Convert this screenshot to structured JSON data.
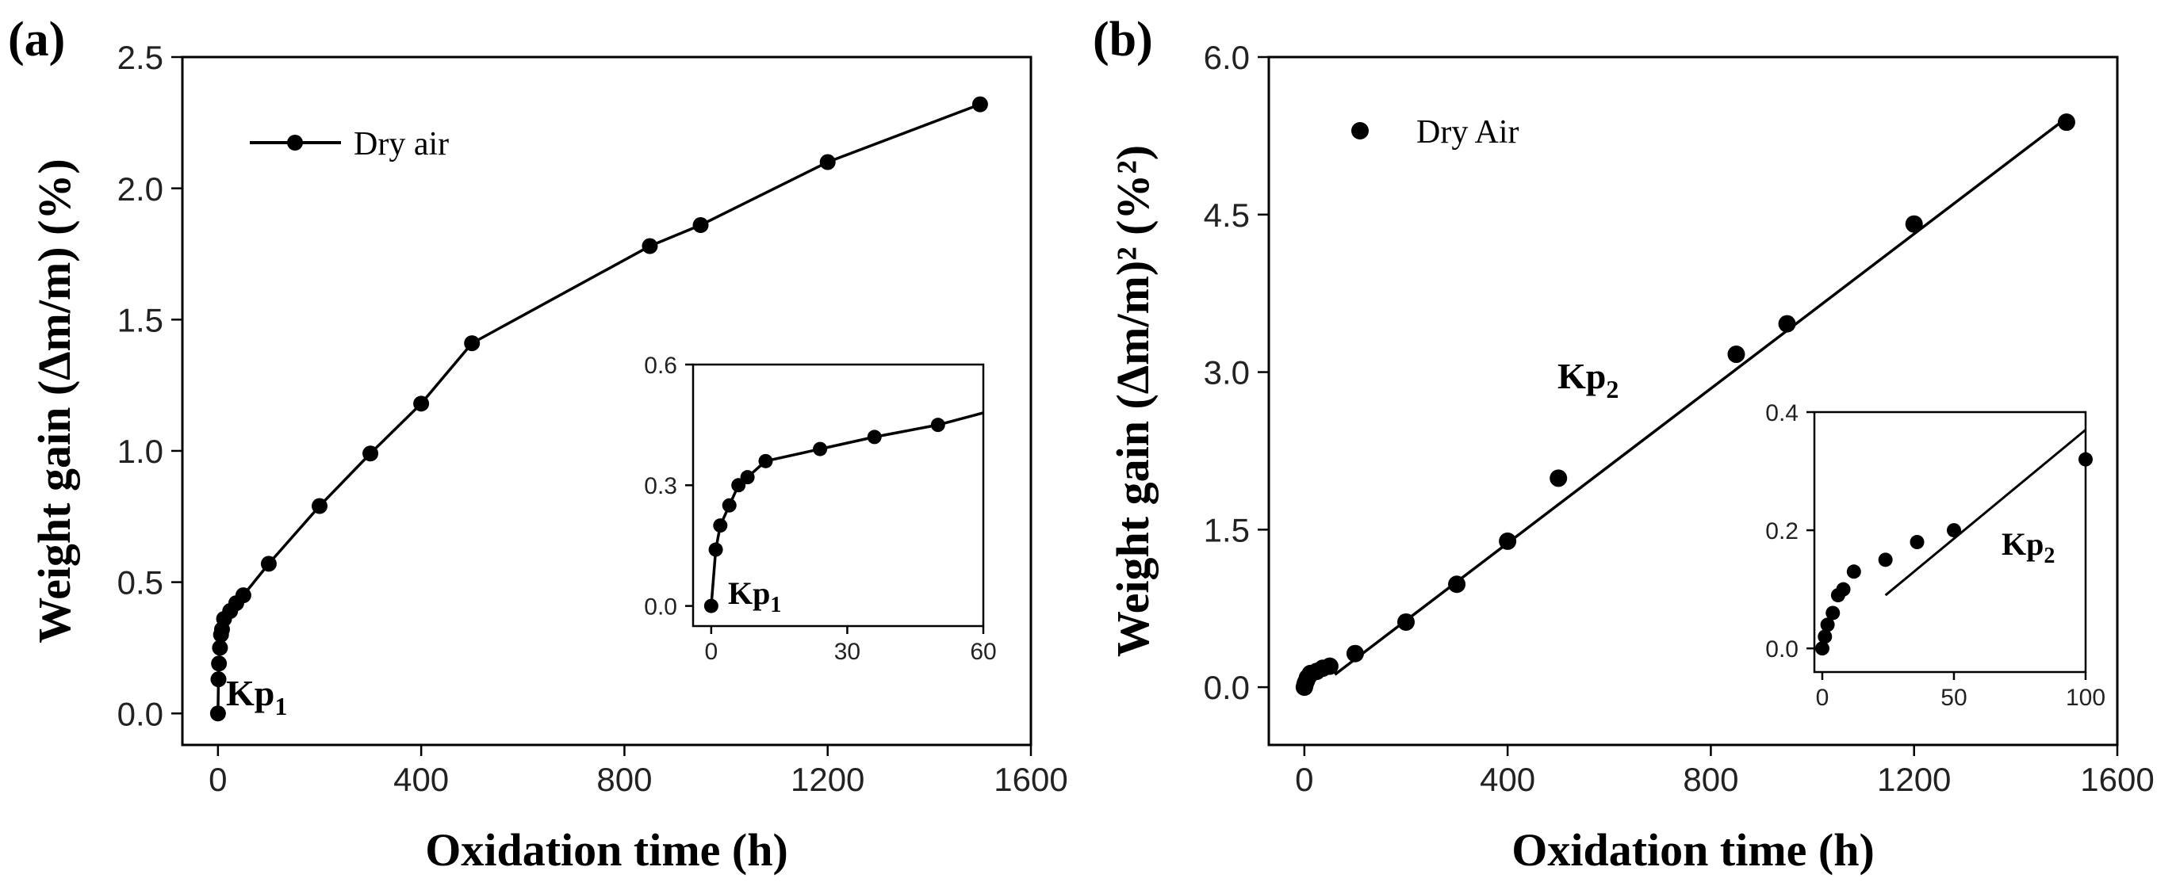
{
  "chart_data": [
    {
      "panel": "(a)",
      "type": "line",
      "xlabel": "Oxidation time (h)",
      "ylabel": "Weight gain (Δm/m) (%)",
      "xlim": [
        -70,
        1600
      ],
      "ylim": [
        -0.12,
        2.5
      ],
      "xticks": [
        0,
        400,
        800,
        1200,
        1600
      ],
      "yticks": [
        0.0,
        0.5,
        1.0,
        1.5,
        2.0,
        2.5
      ],
      "xtick_labels": [
        "0",
        "400",
        "800",
        "1200",
        "1600"
      ],
      "ytick_labels": [
        "0.0",
        "0.5",
        "1.0",
        "1.5",
        "2.0",
        "2.5"
      ],
      "legend": {
        "position": "top-left",
        "entries": [
          "Dry air"
        ]
      },
      "annotation": {
        "text": "Kp",
        "sub": "1"
      },
      "series": [
        {
          "name": "Dry air",
          "style": "line-marker",
          "x": [
            0,
            1,
            2,
            4,
            6,
            8,
            12,
            24,
            36,
            50,
            100,
            200,
            300,
            400,
            500,
            850,
            950,
            1200,
            1500
          ],
          "y": [
            0.0,
            0.13,
            0.19,
            0.25,
            0.3,
            0.32,
            0.36,
            0.39,
            0.42,
            0.45,
            0.57,
            0.79,
            0.99,
            1.18,
            1.41,
            1.78,
            1.86,
            2.1,
            2.32
          ]
        }
      ],
      "inset": {
        "xlim": [
          -4,
          60
        ],
        "ylim": [
          -0.05,
          0.6
        ],
        "xticks": [
          0,
          30,
          60
        ],
        "yticks": [
          0.0,
          0.3,
          0.6
        ],
        "xtick_labels": [
          "0",
          "30",
          "60"
        ],
        "ytick_labels": [
          "0.0",
          "0.3",
          "0.6"
        ],
        "annotation": {
          "text": "Kp",
          "sub": "1"
        },
        "x": [
          0,
          1,
          2,
          4,
          6,
          8,
          12,
          24,
          36,
          50,
          60
        ],
        "y": [
          0.0,
          0.14,
          0.2,
          0.25,
          0.3,
          0.32,
          0.36,
          0.39,
          0.42,
          0.45,
          0.48
        ],
        "markers_count": 10
      }
    },
    {
      "panel": "(b)",
      "type": "scatter",
      "xlabel": "Oxidation time (h)",
      "ylabel": "Weight gain (Δm/m)² (%²)",
      "xlim": [
        -70,
        1600
      ],
      "ylim": [
        -0.55,
        6.0
      ],
      "xticks": [
        0,
        400,
        800,
        1200,
        1600
      ],
      "yticks": [
        0.0,
        1.5,
        3.0,
        4.5,
        6.0
      ],
      "xtick_labels": [
        "0",
        "400",
        "800",
        "1200",
        "1600"
      ],
      "ytick_labels": [
        "0.0",
        "1.5",
        "3.0",
        "4.5",
        "6.0"
      ],
      "legend": {
        "position": "top-left",
        "entries": [
          "Dry Air"
        ]
      },
      "annotation": {
        "text": "Kp",
        "sub": "2"
      },
      "series": [
        {
          "name": "Dry Air",
          "style": "marker",
          "x": [
            0,
            1,
            2,
            4,
            6,
            8,
            12,
            24,
            36,
            50,
            100,
            200,
            300,
            400,
            500,
            850,
            950,
            1200,
            1500
          ],
          "y": [
            0.0,
            0.02,
            0.04,
            0.06,
            0.09,
            0.1,
            0.13,
            0.15,
            0.18,
            0.2,
            0.32,
            0.62,
            0.98,
            1.39,
            1.99,
            3.17,
            3.46,
            4.41,
            5.38
          ]
        }
      ],
      "fit_line": {
        "x": [
          60,
          1500
        ],
        "y": [
          0.12,
          5.42
        ]
      },
      "inset": {
        "xlim": [
          -3,
          100
        ],
        "ylim": [
          -0.04,
          0.4
        ],
        "xticks": [
          0,
          50,
          100
        ],
        "yticks": [
          0.0,
          0.2,
          0.4
        ],
        "xtick_labels": [
          "0",
          "50",
          "100"
        ],
        "ytick_labels": [
          "0.0",
          "0.2",
          "0.4"
        ],
        "annotation": {
          "text": "Kp",
          "sub": "2"
        },
        "x": [
          0,
          1,
          2,
          4,
          6,
          8,
          12,
          24,
          36,
          50,
          100
        ],
        "y": [
          0.0,
          0.02,
          0.04,
          0.06,
          0.09,
          0.1,
          0.13,
          0.15,
          0.18,
          0.2,
          0.32
        ],
        "fit_line": {
          "x": [
            24,
            100
          ],
          "y": [
            0.09,
            0.37
          ]
        }
      }
    }
  ]
}
